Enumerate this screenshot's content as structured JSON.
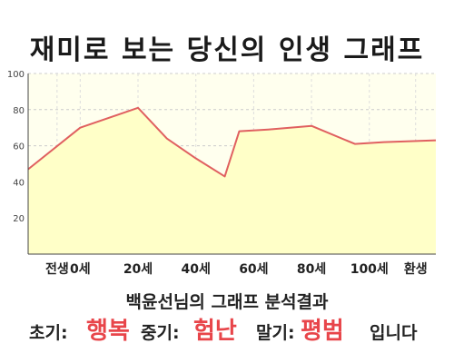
{
  "title": "재미로 보는 당신의 인생 그래프",
  "chart_data": {
    "type": "area",
    "x_ticks": [
      {
        "x": -8,
        "label": "전생"
      },
      {
        "x": 0,
        "label": "0세"
      },
      {
        "x": 20,
        "label": "20세"
      },
      {
        "x": 40,
        "label": "40세"
      },
      {
        "x": 60,
        "label": "60세"
      },
      {
        "x": 80,
        "label": "80세"
      },
      {
        "x": 100,
        "label": "100세"
      },
      {
        "x": 116,
        "label": "환생"
      }
    ],
    "xlim": [
      -18,
      123
    ],
    "ylim": [
      0,
      100
    ],
    "y_ticks": [
      20,
      40,
      60,
      80,
      100
    ],
    "grid": true,
    "series": [
      {
        "color": "#e06060",
        "fill": "#ffffc8",
        "points": [
          [
            -18,
            47
          ],
          [
            0,
            70
          ],
          [
            20,
            81
          ],
          [
            30,
            64
          ],
          [
            40,
            53
          ],
          [
            50,
            43
          ],
          [
            55,
            68
          ],
          [
            65,
            69
          ],
          [
            80,
            71
          ],
          [
            95,
            61
          ],
          [
            105,
            62
          ],
          [
            123,
            63
          ]
        ]
      }
    ]
  },
  "summary": "백윤선님의 그래프 분석결과",
  "results": {
    "early_label": "초기:",
    "early_value": "행복",
    "mid_label": "중기:",
    "mid_value": "험난",
    "late_label": "말기:",
    "late_value": "평범",
    "ending": "입니다"
  }
}
